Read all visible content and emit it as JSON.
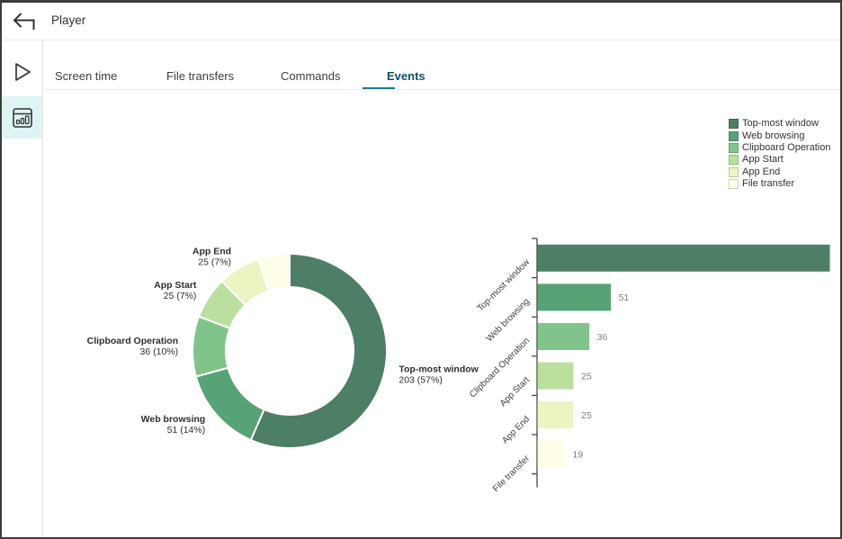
{
  "header": {
    "title": "Player"
  },
  "sidebar": {
    "items": [
      {
        "icon": "play-icon",
        "active": false
      },
      {
        "icon": "statistics-icon",
        "active": true
      }
    ]
  },
  "tabs": {
    "items": [
      {
        "label": "Screen time",
        "active": false
      },
      {
        "label": "File transfers",
        "active": false
      },
      {
        "label": "Commands",
        "active": false
      },
      {
        "label": "Events",
        "active": true
      }
    ]
  },
  "legend": {
    "position": "top-right",
    "items": [
      "Top-most window",
      "Web browsing",
      "Clipboard Operation",
      "App Start",
      "App End",
      "File transfer"
    ]
  },
  "colors": {
    "series": [
      "#4d7e66",
      "#57a375",
      "#81c48b",
      "#badf9f",
      "#ebf5c1",
      "#fdfde8"
    ],
    "tab_active_text": "#10506a",
    "tab_underline": "#1d7a8e",
    "sidebar_highlight": "#def4f4",
    "axis": "#4a4a4a",
    "value_label": "#7d7d7d",
    "chart_text": "#2e2e2e"
  },
  "chart_data": [
    {
      "type": "pie",
      "subtype": "donut",
      "categories": [
        "Top-most window",
        "Web browsing",
        "Clipboard Operation",
        "App Start",
        "App End",
        "File transfer"
      ],
      "values": [
        203,
        51,
        36,
        25,
        25,
        19
      ],
      "labels": [
        {
          "name": "Top-most window",
          "value_text": "203 (57%)",
          "shown": true
        },
        {
          "name": "Web browsing",
          "value_text": "51 (14%)",
          "shown": true
        },
        {
          "name": "Clipboard Operation",
          "value_text": "36 (10%)",
          "shown": true
        },
        {
          "name": "App Start",
          "value_text": "25 (7%)",
          "shown": true
        },
        {
          "name": "App End",
          "value_text": "25 (7%)",
          "shown": true
        },
        {
          "name": "File transfer",
          "value_text": "19 (5%)",
          "shown": false
        }
      ],
      "legend_position": "top-right",
      "title": ""
    },
    {
      "type": "bar",
      "orientation": "horizontal",
      "categories": [
        "Top-most window",
        "Web browsing",
        "Clipboard Operation",
        "App Start",
        "App End",
        "File transfer"
      ],
      "values": [
        203,
        51,
        36,
        25,
        25,
        19
      ],
      "value_labels": [
        "",
        "51",
        "36",
        "25",
        "25",
        "19"
      ],
      "xlim": [
        0,
        203
      ],
      "grid": false,
      "title": ""
    }
  ]
}
